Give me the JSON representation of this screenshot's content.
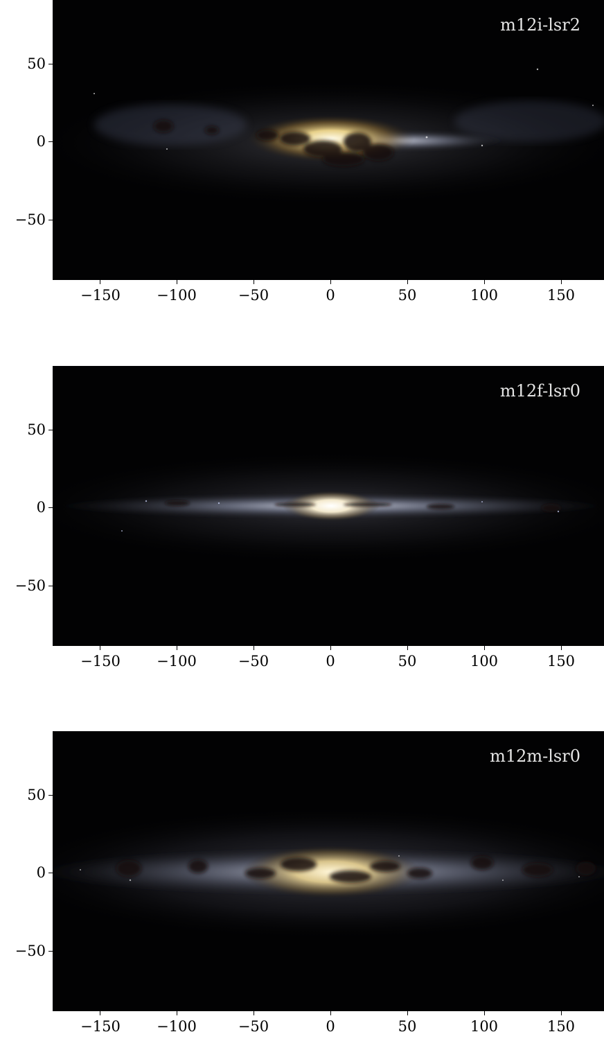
{
  "panels": [
    {
      "label": "m12i-lsr2",
      "x_ticks": [
        "−150",
        "−100",
        "−50",
        "0",
        "50",
        "100",
        "150"
      ],
      "y_ticks": [
        "50",
        "0",
        "−50"
      ]
    },
    {
      "label": "m12f-lsr0",
      "x_ticks": [
        "−150",
        "−100",
        "−50",
        "0",
        "50",
        "100",
        "150"
      ],
      "y_ticks": [
        "50",
        "0",
        "−50"
      ]
    },
    {
      "label": "m12m-lsr0",
      "x_ticks": [
        "−150",
        "−100",
        "−50",
        "0",
        "50",
        "100",
        "150"
      ],
      "y_ticks": [
        "50",
        "0",
        "−50"
      ]
    }
  ],
  "colors": {
    "sky_background": "#020203",
    "bulge_core": "#fff4d6",
    "disk_light": "#c8cede",
    "dust_lane": "#1a130c"
  }
}
